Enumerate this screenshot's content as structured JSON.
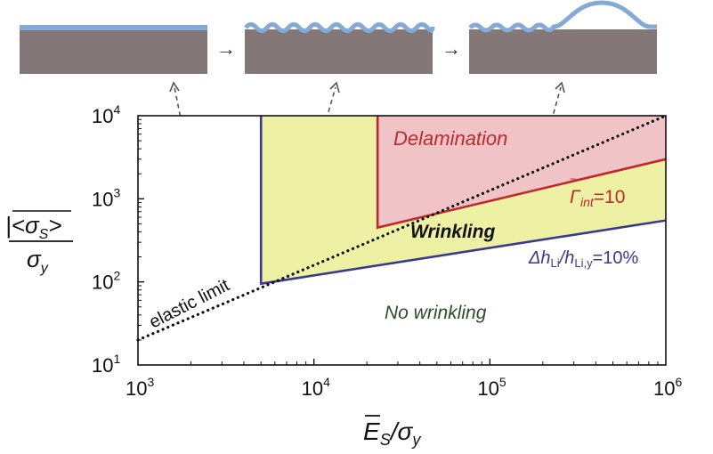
{
  "chart_data": {
    "type": "area",
    "x_scale": "log",
    "y_scale": "log",
    "xlim": [
      1000,
      1000000
    ],
    "ylim": [
      10,
      10000
    ],
    "x_ticks": [
      {
        "value": 1000,
        "base": "10",
        "exp": "3"
      },
      {
        "value": 10000,
        "base": "10",
        "exp": "4"
      },
      {
        "value": 100000,
        "base": "10",
        "exp": "5"
      },
      {
        "value": 1000000,
        "base": "10",
        "exp": "6"
      }
    ],
    "y_ticks": [
      {
        "value": 10,
        "base": "10",
        "exp": "1"
      },
      {
        "value": 100,
        "base": "10",
        "exp": "2"
      },
      {
        "value": 1000,
        "base": "10",
        "exp": "3"
      },
      {
        "value": 10000,
        "base": "10",
        "exp": "4"
      }
    ],
    "xlabel": {
      "main": "E",
      "sub": "S",
      "tail": "/σ",
      "sub2": "y"
    },
    "ylabel": {
      "numerator": "|<σ",
      "sub": "S",
      "close": ">",
      "denominator": "σ",
      "dsub": "y"
    },
    "regions": [
      {
        "name": "Wrinkling",
        "label": "Wrinkling",
        "color": "#eef0a4",
        "points": [
          [
            5000,
            10000
          ],
          [
            23000,
            10000
          ],
          [
            23000,
            450
          ],
          [
            1000000,
            3000
          ],
          [
            1000000,
            550
          ],
          [
            5000,
            95
          ]
        ]
      },
      {
        "name": "Delamination",
        "label": "Delamination",
        "color": "#f0c4c6",
        "points": [
          [
            23000,
            10000
          ],
          [
            1000000,
            10000
          ],
          [
            1000000,
            3000
          ],
          [
            23000,
            450
          ]
        ]
      },
      {
        "name": "No wrinkling",
        "label": "No wrinkling"
      }
    ],
    "series": [
      {
        "name": "Δh_Li/h_Li,y=10%",
        "color": "#3a3a8c",
        "x": [
          5000,
          5000,
          1000000
        ],
        "y": [
          10000,
          95,
          550
        ]
      },
      {
        "name": "Γ_int=10",
        "color": "#c0282e",
        "x": [
          23000,
          23000,
          1000000
        ],
        "y": [
          10000,
          450,
          3000
        ]
      },
      {
        "name": "elastic limit",
        "color": "#111111",
        "style": "dotted",
        "x": [
          1000,
          1000000
        ],
        "y": [
          20,
          10000
        ]
      }
    ],
    "annotations": {
      "delamination": {
        "text": "Delamination",
        "color": "#c0282e"
      },
      "wrinkling": {
        "text": "Wrinkling",
        "color": "#111111"
      },
      "no_wrinkling": {
        "text": "No wrinkling",
        "color": "#2d4a2d"
      },
      "elastic_limit": {
        "text": "elastic limit",
        "color": "#111111"
      },
      "gamma": {
        "symbol": "Γ",
        "sub": "int",
        "value": "=10",
        "color": "#c0282e"
      },
      "delta_h": {
        "prefix": "Δh",
        "sub1": "Li",
        "mid": "/h",
        "sub2": "Li,y",
        "value": "=10%",
        "color": "#3a3a8c"
      }
    },
    "schematic": {
      "substrate_color": "#837777",
      "film_color": "#85a9d6",
      "arrow_symbol": "→",
      "panels": [
        "flat",
        "wrinkled",
        "delaminated"
      ]
    }
  }
}
